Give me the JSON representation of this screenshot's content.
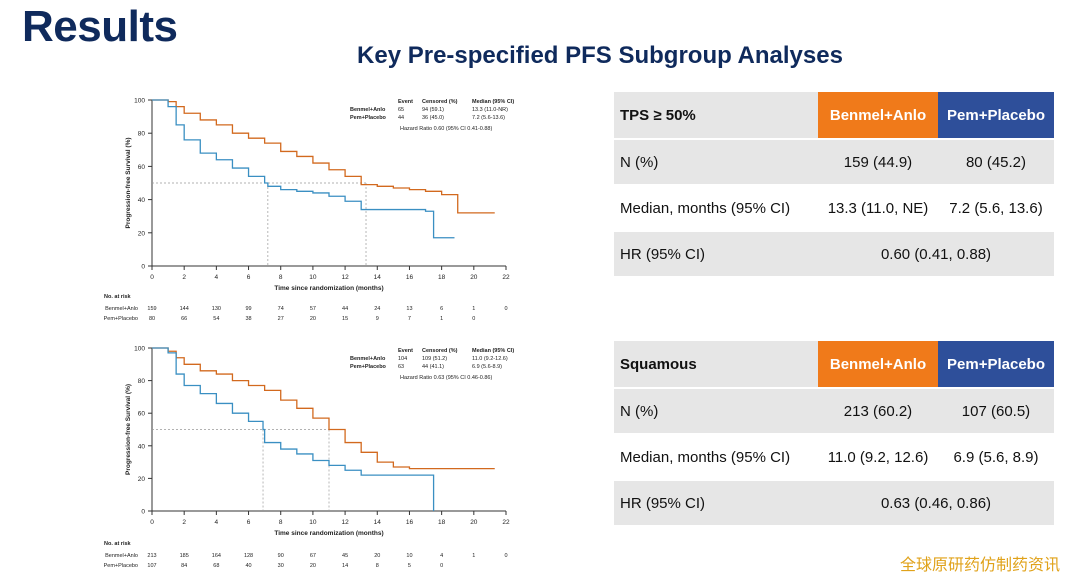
{
  "slide": {
    "title": "Results",
    "subtitle": "Key Pre-specified PFS Subgroup Analyses",
    "watermark": "全球原研药仿制药资讯"
  },
  "colors": {
    "orange": "#d2691e",
    "blue": "#3a8fc2",
    "header_orange": "#f07a1a",
    "header_blue": "#2e4f9a"
  },
  "tables": [
    {
      "header": {
        "label": "TPS ≥ 50%",
        "col1": "Benmel+Anlo",
        "col2": "Pem+Placebo"
      },
      "rows": [
        {
          "label": "N (%)",
          "col1": "159 (44.9)",
          "col2": "80 (45.2)"
        },
        {
          "label": "Median, months (95% CI)",
          "col1": "13.3 (11.0, NE)",
          "col2": "7.2 (5.6, 13.6)"
        }
      ],
      "hr": {
        "label": "HR (95% CI)",
        "value": "0.60 (0.41, 0.88)"
      }
    },
    {
      "header": {
        "label": "Squamous",
        "col1": "Benmel+Anlo",
        "col2": "Pem+Placebo"
      },
      "rows": [
        {
          "label": "N (%)",
          "col1": "213 (60.2)",
          "col2": "107 (60.5)"
        },
        {
          "label": "Median, months (95% CI)",
          "col1": "11.0 (9.2, 12.6)",
          "col2": "6.9 (5.6, 8.9)"
        }
      ],
      "hr": {
        "label": "HR (95% CI)",
        "value": "0.63 (0.46, 0.86)"
      }
    }
  ],
  "chart_data": [
    {
      "type": "line",
      "xlabel": "Time since randomization (months)",
      "ylabel": "Progression-free Survival (%)",
      "xlim": [
        0,
        22
      ],
      "ylim": [
        0,
        100
      ],
      "xticks": [
        0,
        2,
        4,
        6,
        8,
        10,
        12,
        14,
        16,
        18,
        20,
        22
      ],
      "yticks": [
        0,
        20,
        40,
        60,
        80,
        100
      ],
      "legend_header": [
        "Event",
        "Censored (%)",
        "Median (95% CI)"
      ],
      "series": [
        {
          "name": "Benmel+Anlo",
          "color": "#d2691e",
          "event": "65",
          "censored": "94 (59.1)",
          "median_ci": "13.3 (11.0-NR)",
          "points": [
            [
              0,
              100
            ],
            [
              1,
              99
            ],
            [
              1.5,
              96
            ],
            [
              2,
              92
            ],
            [
              3,
              88
            ],
            [
              4,
              85
            ],
            [
              5,
              80
            ],
            [
              6,
              77
            ],
            [
              7,
              74
            ],
            [
              8,
              69
            ],
            [
              9,
              66
            ],
            [
              10,
              62
            ],
            [
              11,
              58
            ],
            [
              12,
              54
            ],
            [
              13,
              49
            ],
            [
              14,
              48
            ],
            [
              15,
              47
            ],
            [
              16,
              46
            ],
            [
              17,
              45
            ],
            [
              18,
              43
            ],
            [
              19,
              32
            ],
            [
              21.3,
              32
            ]
          ]
        },
        {
          "name": "Pem+Placebo",
          "color": "#3a8fc2",
          "event": "44",
          "censored": "36 (45.0)",
          "median_ci": "7.2 (5.6-13.6)",
          "points": [
            [
              0,
              100
            ],
            [
              1,
              96
            ],
            [
              1.5,
              85
            ],
            [
              2,
              76
            ],
            [
              3,
              68
            ],
            [
              4,
              64
            ],
            [
              5,
              59
            ],
            [
              6,
              54
            ],
            [
              7,
              50
            ],
            [
              7.2,
              48
            ],
            [
              8,
              46
            ],
            [
              9,
              45
            ],
            [
              10,
              44
            ],
            [
              11,
              42
            ],
            [
              12,
              39
            ],
            [
              13,
              34
            ],
            [
              16,
              34
            ],
            [
              17,
              33
            ],
            [
              17.5,
              17
            ],
            [
              18.8,
              17
            ]
          ]
        }
      ],
      "median_markers": [
        7.2,
        13.3
      ],
      "hazard_ratio": "Hazard Ratio 0.60 (95% CI 0.41-0.88)",
      "risk_table": {
        "title": "No. at risk",
        "rows": [
          {
            "name": "Benmel+Anlo",
            "values": [
              "159",
              "144",
              "130",
              "99",
              "74",
              "57",
              "44",
              "24",
              "13",
              "6",
              "1",
              "0"
            ]
          },
          {
            "name": "Pem+Placebo",
            "values": [
              "80",
              "66",
              "54",
              "38",
              "27",
              "20",
              "15",
              "9",
              "7",
              "1",
              "0"
            ]
          }
        ]
      }
    },
    {
      "type": "line",
      "xlabel": "Time since randomization (months)",
      "ylabel": "Progression-free Survival (%)",
      "xlim": [
        0,
        22
      ],
      "ylim": [
        0,
        100
      ],
      "xticks": [
        0,
        2,
        4,
        6,
        8,
        10,
        12,
        14,
        16,
        18,
        20,
        22
      ],
      "yticks": [
        0,
        20,
        40,
        60,
        80,
        100
      ],
      "legend_header": [
        "Event",
        "Censored (%)",
        "Median (95% CI)"
      ],
      "series": [
        {
          "name": "Benmel+Anlo",
          "color": "#d2691e",
          "event": "104",
          "censored": "109 (51.2)",
          "median_ci": "11.0 (9.2-12.6)",
          "points": [
            [
              0,
              100
            ],
            [
              1,
              98
            ],
            [
              1.5,
              94
            ],
            [
              2,
              90
            ],
            [
              3,
              86
            ],
            [
              4,
              84
            ],
            [
              5,
              80
            ],
            [
              6,
              77
            ],
            [
              7,
              74
            ],
            [
              8,
              68
            ],
            [
              9,
              63
            ],
            [
              10,
              57
            ],
            [
              11,
              50
            ],
            [
              12,
              42
            ],
            [
              13,
              36
            ],
            [
              14,
              30
            ],
            [
              15,
              27
            ],
            [
              16,
              26
            ],
            [
              21.3,
              26
            ]
          ]
        },
        {
          "name": "Pem+Placebo",
          "color": "#3a8fc2",
          "event": "63",
          "censored": "44 (41.1)",
          "median_ci": "6.9 (5.6-8.9)",
          "points": [
            [
              0,
              100
            ],
            [
              1,
              97
            ],
            [
              1.5,
              84
            ],
            [
              2,
              77
            ],
            [
              3,
              72
            ],
            [
              4,
              66
            ],
            [
              5,
              60
            ],
            [
              6,
              55
            ],
            [
              6.9,
              50
            ],
            [
              7,
              42
            ],
            [
              8,
              38
            ],
            [
              9,
              35
            ],
            [
              10,
              31
            ],
            [
              11,
              28
            ],
            [
              12,
              25
            ],
            [
              13,
              22
            ],
            [
              17.5,
              22
            ],
            [
              17.5,
              0
            ]
          ]
        }
      ],
      "median_markers": [
        6.9,
        11.0
      ],
      "hazard_ratio": "Hazard Ratio 0.63 (95% CI 0.46-0.86)",
      "risk_table": {
        "title": "No. at risk",
        "rows": [
          {
            "name": "Benmel+Anlo",
            "values": [
              "213",
              "185",
              "164",
              "128",
              "90",
              "67",
              "45",
              "20",
              "10",
              "4",
              "1",
              "0"
            ]
          },
          {
            "name": "Pem+Placebo",
            "values": [
              "107",
              "84",
              "68",
              "40",
              "30",
              "20",
              "14",
              "8",
              "5",
              "0"
            ]
          }
        ]
      }
    }
  ]
}
